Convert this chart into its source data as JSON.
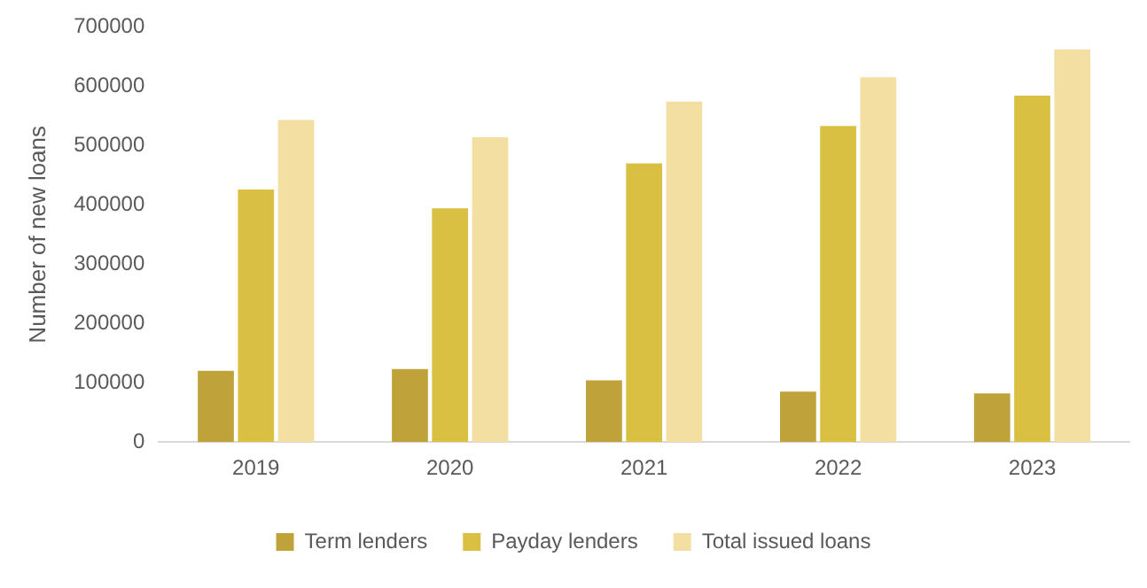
{
  "chart_data": {
    "type": "bar",
    "ylabel": "Number of new loans",
    "categories": [
      "2019",
      "2020",
      "2021",
      "2022",
      "2023"
    ],
    "series": [
      {
        "name": "Term lenders",
        "color": "#bfa33a",
        "values": [
          120000,
          123000,
          104000,
          85000,
          82000
        ]
      },
      {
        "name": "Payday lenders",
        "color": "#d9c043",
        "values": [
          426000,
          394000,
          470000,
          533000,
          584000
        ]
      },
      {
        "name": "Total issued loans",
        "color": "#f3dfa2",
        "values": [
          543000,
          514000,
          574000,
          615000,
          662000
        ]
      }
    ],
    "ylim": [
      0,
      700000
    ],
    "yticks": [
      0,
      100000,
      200000,
      300000,
      400000,
      500000,
      600000,
      700000
    ],
    "grid": false,
    "legend": "bottom"
  }
}
